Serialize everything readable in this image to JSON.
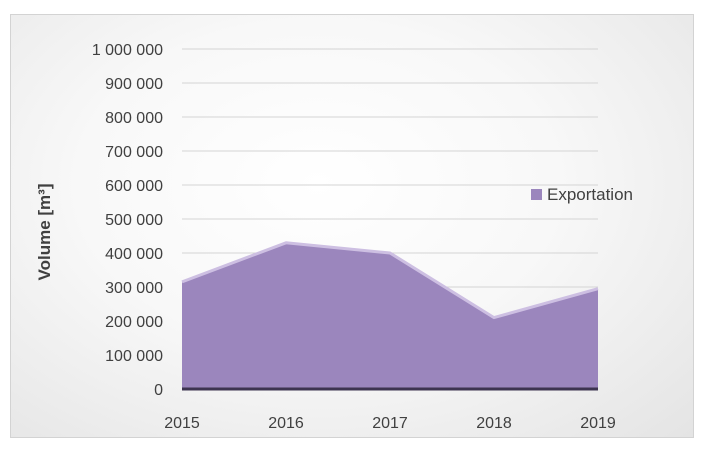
{
  "chart_data": {
    "type": "area",
    "title": "",
    "xlabel": "",
    "ylabel": "Volume [m³]",
    "categories": [
      "2015",
      "2016",
      "2017",
      "2018",
      "2019"
    ],
    "series": [
      {
        "name": "Exportation",
        "values": [
          315000,
          430000,
          400000,
          210000,
          295000
        ],
        "color": "#9b86bd",
        "edge_color": "#cdbfe2"
      }
    ],
    "ylim": [
      0,
      1000000
    ],
    "yticks": [
      {
        "value": 0,
        "label": "0"
      },
      {
        "value": 100000,
        "label": "100 000"
      },
      {
        "value": 200000,
        "label": "200 000"
      },
      {
        "value": 300000,
        "label": "300 000"
      },
      {
        "value": 400000,
        "label": "400 000"
      },
      {
        "value": 500000,
        "label": "500 000"
      },
      {
        "value": 600000,
        "label": "600 000"
      },
      {
        "value": 700000,
        "label": "700 000"
      },
      {
        "value": 800000,
        "label": "800 000"
      },
      {
        "value": 900000,
        "label": "900 000"
      },
      {
        "value": 1000000,
        "label": "1 000 000"
      }
    ],
    "grid": true,
    "legend_position": "right"
  }
}
